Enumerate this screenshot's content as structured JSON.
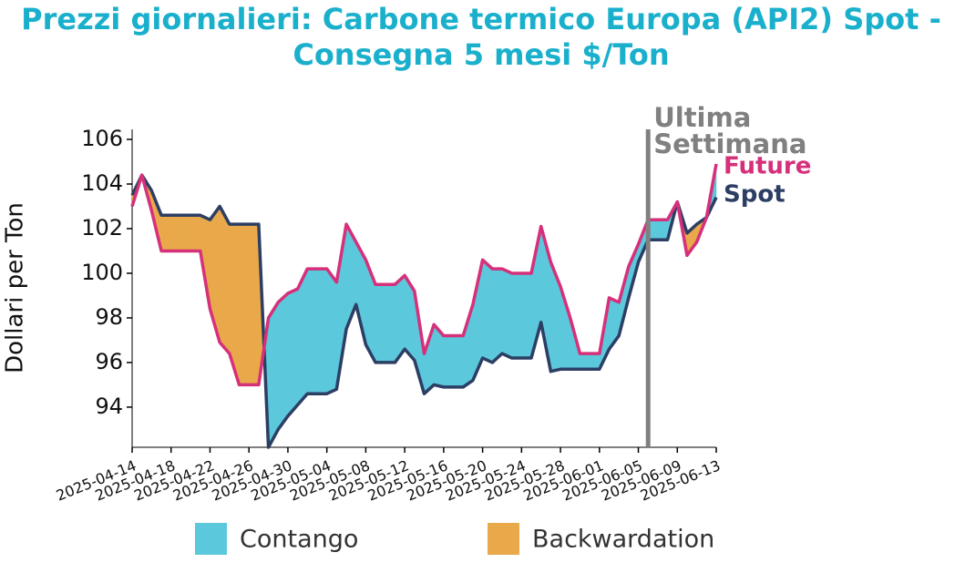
{
  "chart_data": {
    "type": "line",
    "title": [
      "Prezzi giornalieri: Carbone termico Europa (API2) Spot -",
      "Consegna 5 mesi $/Ton"
    ],
    "ylabel": "Dollari per Ton",
    "x": [
      "2025-04-14",
      "2025-04-15",
      "2025-04-16",
      "2025-04-17",
      "2025-04-18",
      "2025-04-19",
      "2025-04-20",
      "2025-04-21",
      "2025-04-22",
      "2025-04-23",
      "2025-04-24",
      "2025-04-25",
      "2025-04-26",
      "2025-04-27",
      "2025-04-28",
      "2025-04-29",
      "2025-04-30",
      "2025-05-01",
      "2025-05-02",
      "2025-05-03",
      "2025-05-04",
      "2025-05-05",
      "2025-05-06",
      "2025-05-07",
      "2025-05-08",
      "2025-05-09",
      "2025-05-10",
      "2025-05-11",
      "2025-05-12",
      "2025-05-13",
      "2025-05-14",
      "2025-05-15",
      "2025-05-16",
      "2025-05-17",
      "2025-05-18",
      "2025-05-19",
      "2025-05-20",
      "2025-05-21",
      "2025-05-22",
      "2025-05-23",
      "2025-05-24",
      "2025-05-25",
      "2025-05-26",
      "2025-05-27",
      "2025-05-28",
      "2025-05-29",
      "2025-05-30",
      "2025-05-31",
      "2025-06-01",
      "2025-06-02",
      "2025-06-03",
      "2025-06-04",
      "2025-06-05",
      "2025-06-06",
      "2025-06-07",
      "2025-06-08",
      "2025-06-09",
      "2025-06-10",
      "2025-06-11",
      "2025-06-12",
      "2025-06-13"
    ],
    "series": [
      {
        "name": "Future",
        "color": "#d6307a",
        "values": [
          103.0,
          104.4,
          102.8,
          101.0,
          101.0,
          101.0,
          101.0,
          101.0,
          98.4,
          96.9,
          96.4,
          95.0,
          95.0,
          95.0,
          98.0,
          98.7,
          99.1,
          99.3,
          100.2,
          100.2,
          100.2,
          99.6,
          102.2,
          101.4,
          100.6,
          99.5,
          99.5,
          99.5,
          99.9,
          99.2,
          96.4,
          97.7,
          97.2,
          97.2,
          97.2,
          98.6,
          100.6,
          100.2,
          100.2,
          100.0,
          100.0,
          100.0,
          102.1,
          100.5,
          99.4,
          98.0,
          96.4,
          96.4,
          96.4,
          98.9,
          98.7,
          100.3,
          101.3,
          102.4,
          102.4,
          102.4,
          103.2,
          100.8,
          101.4,
          102.5,
          104.9
        ]
      },
      {
        "name": "Spot",
        "color": "#2c3e63",
        "values": [
          103.5,
          104.4,
          103.7,
          102.6,
          102.6,
          102.6,
          102.6,
          102.6,
          102.4,
          103.0,
          102.2,
          102.2,
          102.2,
          102.2,
          92.2,
          93.0,
          93.6,
          94.1,
          94.6,
          94.6,
          94.6,
          94.8,
          97.5,
          98.6,
          96.8,
          96.0,
          96.0,
          96.0,
          96.6,
          96.1,
          94.6,
          95.0,
          94.9,
          94.9,
          94.9,
          95.2,
          96.2,
          96.0,
          96.4,
          96.2,
          96.2,
          96.2,
          97.8,
          95.6,
          95.7,
          95.7,
          95.7,
          95.7,
          95.7,
          96.6,
          97.2,
          98.9,
          100.5,
          101.5,
          101.5,
          101.5,
          103.2,
          101.8,
          102.2,
          102.5,
          103.4
        ]
      }
    ],
    "fill_legend": [
      {
        "name": "Contango",
        "color": "#5bc8dc"
      },
      {
        "name": "Backwardation",
        "color": "#e9a94a"
      }
    ],
    "xlim": [
      "2025-04-14",
      "2025-06-13"
    ],
    "xticks": [
      "2025-04-14",
      "2025-04-18",
      "2025-04-22",
      "2025-04-26",
      "2025-04-30",
      "2025-05-04",
      "2025-05-08",
      "2025-05-12",
      "2025-05-16",
      "2025-05-20",
      "2025-05-24",
      "2025-05-28",
      "2025-06-01",
      "2025-06-05",
      "2025-06-09",
      "2025-06-13"
    ],
    "ylim": [
      92.2,
      106.45
    ],
    "yticks": [
      94,
      96,
      98,
      100,
      102,
      104,
      106
    ],
    "vline": {
      "x": "2025-06-06",
      "label": [
        "Ultima",
        "Settimana"
      ],
      "color": "#808080"
    }
  }
}
